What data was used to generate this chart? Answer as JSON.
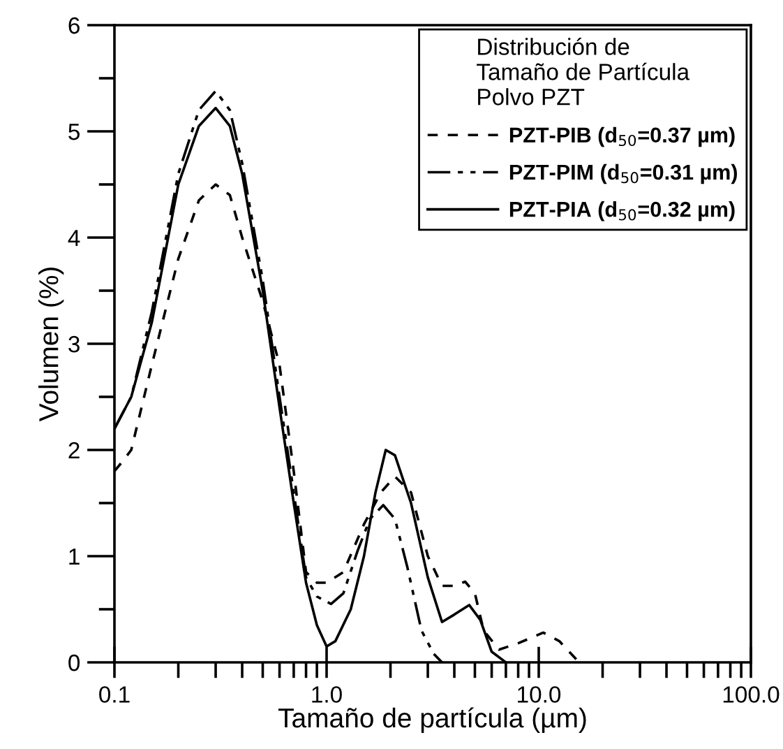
{
  "chart_data": {
    "type": "line",
    "xlabel": "Tamaño de partícula (µm)",
    "ylabel": "Volumen (%)",
    "legend_title": "Distribución de\nTamaño de Partícula\nPolvo PZT",
    "legend": "top right",
    "log": "x",
    "grid": false,
    "marker": "none",
    "xlim": [
      0.1,
      100
    ],
    "ylim": [
      0,
      6
    ],
    "xticks": [
      {
        "value": 0.1,
        "label": "0.1"
      },
      {
        "value": 0.2,
        "label": null
      },
      {
        "value": 0.3,
        "label": null
      },
      {
        "value": 0.4,
        "label": null
      },
      {
        "value": 0.5,
        "label": null
      },
      {
        "value": 0.6,
        "label": null
      },
      {
        "value": 0.7,
        "label": null
      },
      {
        "value": 0.8,
        "label": null
      },
      {
        "value": 0.9,
        "label": null
      },
      {
        "value": 1,
        "label": "1.0"
      },
      {
        "value": 2,
        "label": null
      },
      {
        "value": 3,
        "label": null
      },
      {
        "value": 4,
        "label": null
      },
      {
        "value": 5,
        "label": null
      },
      {
        "value": 6,
        "label": null
      },
      {
        "value": 7,
        "label": null
      },
      {
        "value": 8,
        "label": null
      },
      {
        "value": 9,
        "label": null
      },
      {
        "value": 10,
        "label": "10.0"
      },
      {
        "value": 20,
        "label": null
      },
      {
        "value": 30,
        "label": null
      },
      {
        "value": 40,
        "label": null
      },
      {
        "value": 50,
        "label": null
      },
      {
        "value": 60,
        "label": null
      },
      {
        "value": 70,
        "label": null
      },
      {
        "value": 80,
        "label": null
      },
      {
        "value": 90,
        "label": null
      },
      {
        "value": 100,
        "label": "100.0"
      }
    ],
    "yticks": [
      0,
      {
        "value": 0.5,
        "label": null
      },
      1,
      {
        "value": 1.5,
        "label": null
      },
      2,
      {
        "value": 2.5,
        "label": null
      },
      3,
      {
        "value": 3.5,
        "label": null
      },
      4,
      {
        "value": 4.5,
        "label": null
      },
      5,
      {
        "value": 5.5,
        "label": null
      },
      6
    ],
    "series": [
      {
        "name": "PZT-PIB (d$_{50}$=0.37 µm)",
        "color": "#000000",
        "line_style": "dashed",
        "x": [
          0.1,
          0.11,
          0.12,
          0.15,
          0.2,
          0.25,
          0.3,
          0.35,
          0.4,
          0.5,
          0.6,
          0.7,
          0.8,
          0.9,
          1.0,
          1.2,
          1.5,
          1.8,
          2.1,
          2.5,
          3.0,
          3.5,
          4.0,
          4.5,
          5.0,
          5.5,
          6.5,
          8.0,
          10.5,
          12.5,
          15.5
        ],
        "values": [
          1.8,
          1.9,
          2.0,
          2.8,
          3.8,
          4.35,
          4.5,
          4.4,
          4.0,
          3.4,
          2.8,
          1.8,
          0.85,
          0.75,
          0.75,
          0.85,
          1.3,
          1.6,
          1.75,
          1.6,
          1.0,
          0.72,
          0.72,
          0.76,
          0.65,
          0.3,
          0.12,
          0.18,
          0.28,
          0.2,
          0.0
        ]
      },
      {
        "name": "PZT-PIM (d$_{50}$=0.31 µm)",
        "color": "#000000",
        "line_style": "dashdot",
        "x": [
          0.1,
          0.12,
          0.15,
          0.2,
          0.25,
          0.3,
          0.35,
          0.4,
          0.5,
          0.6,
          0.7,
          0.8,
          0.9,
          1.05,
          1.2,
          1.4,
          1.6,
          1.85,
          2.1,
          2.4,
          2.8,
          3.2,
          3.5
        ],
        "values": [
          2.2,
          2.5,
          3.3,
          4.6,
          5.2,
          5.38,
          5.2,
          4.7,
          3.6,
          2.5,
          1.6,
          0.8,
          0.62,
          0.55,
          0.65,
          1.05,
          1.35,
          1.48,
          1.35,
          0.9,
          0.3,
          0.08,
          0.0
        ]
      },
      {
        "name": "PZT-PIA (d$_{50}$=0.32 µm)",
        "color": "#000000",
        "line_style": "solid",
        "x": [
          0.1,
          0.12,
          0.15,
          0.2,
          0.25,
          0.3,
          0.35,
          0.4,
          0.5,
          0.6,
          0.7,
          0.8,
          0.9,
          1.0,
          1.1,
          1.3,
          1.5,
          1.7,
          1.9,
          2.1,
          2.5,
          3.0,
          3.5,
          4.0,
          4.7,
          5.3,
          6.0,
          7.0
        ],
        "values": [
          2.2,
          2.5,
          3.2,
          4.5,
          5.05,
          5.22,
          5.05,
          4.6,
          3.5,
          2.4,
          1.5,
          0.75,
          0.35,
          0.15,
          0.2,
          0.5,
          1.0,
          1.6,
          2.0,
          1.95,
          1.5,
          0.8,
          0.38,
          0.45,
          0.54,
          0.4,
          0.1,
          0.0
        ]
      }
    ]
  }
}
